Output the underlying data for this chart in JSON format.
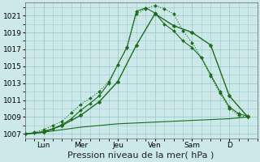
{
  "xlabel": "Pression niveau de la mer( hPa )",
  "background_color": "#cce8e8",
  "grid_color": "#99cccc",
  "line_color": "#1a6b1a",
  "ylim": [
    1006.5,
    1022.5
  ],
  "yticks": [
    1007,
    1009,
    1011,
    1013,
    1015,
    1017,
    1019,
    1021
  ],
  "day_labels": [
    "Lun",
    "Mer",
    "Jeu",
    "Ven",
    "Sam",
    "D"
  ],
  "day_positions": [
    1,
    3,
    5,
    7,
    9,
    11
  ],
  "xlim": [
    0,
    12.5
  ],
  "series1_x": [
    0,
    0.5,
    1,
    1.5,
    2,
    2.5,
    3,
    3.5,
    4,
    4.5,
    5,
    5.5,
    6,
    6.5,
    7,
    7.5,
    8,
    8.5,
    9,
    9.5,
    10,
    10.5,
    11,
    11.5,
    12
  ],
  "series1_y": [
    1007,
    1007.2,
    1007.5,
    1008,
    1008.5,
    1009.5,
    1010.5,
    1011.2,
    1012,
    1013.2,
    1015.2,
    1017.2,
    1021.2,
    1021.8,
    1022.2,
    1021.8,
    1021.2,
    1019.2,
    1017.8,
    1016,
    1013.8,
    1011.8,
    1010,
    1009.2,
    1009.0
  ],
  "series2_x": [
    0,
    0.5,
    1,
    1.5,
    2,
    2.5,
    3,
    3.5,
    4,
    4.5,
    5,
    5.5,
    6,
    6.5,
    7,
    7.5,
    8,
    8.5,
    9,
    9.5,
    10,
    10.5,
    11,
    11.5,
    12
  ],
  "series2_y": [
    1007,
    1007.1,
    1007.3,
    1007.6,
    1008.1,
    1008.8,
    1009.8,
    1010.6,
    1011.5,
    1013.0,
    1015.2,
    1017.3,
    1021.5,
    1021.9,
    1021.3,
    1020.0,
    1019.2,
    1018.0,
    1017.2,
    1016.0,
    1014.0,
    1012.0,
    1010.2,
    1009.4,
    1009.1
  ],
  "series3_x": [
    0,
    1,
    2,
    3,
    4,
    5,
    6,
    7,
    8,
    9,
    10,
    11,
    12
  ],
  "series3_y": [
    1007,
    1007.2,
    1008.0,
    1009.2,
    1010.8,
    1013.2,
    1017.5,
    1021.2,
    1019.8,
    1019.0,
    1017.5,
    1011.5,
    1009.0
  ],
  "series4_x": [
    0,
    1,
    2,
    3,
    4,
    5,
    6,
    7,
    8,
    9,
    10,
    11,
    12
  ],
  "series4_y": [
    1007,
    1007.2,
    1007.5,
    1007.8,
    1008.0,
    1008.2,
    1008.3,
    1008.4,
    1008.5,
    1008.6,
    1008.7,
    1008.8,
    1009.0
  ],
  "xlabel_fontsize": 8,
  "tick_fontsize": 6.5
}
